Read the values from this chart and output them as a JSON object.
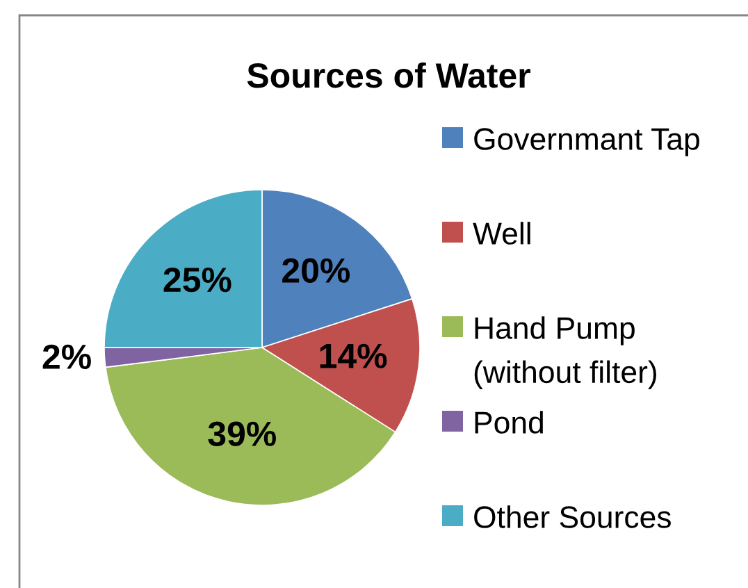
{
  "chart_data": {
    "type": "pie",
    "title": "Sources of Water",
    "categories": [
      "Governmant Tap",
      "Well",
      "Hand Pump (without filter)",
      "Pond",
      "Other Sources"
    ],
    "values": [
      20,
      14,
      39,
      2,
      25
    ],
    "colors": [
      "#4f81bd",
      "#c0504d",
      "#9bbb59",
      "#8064a2",
      "#4bacc6"
    ],
    "value_labels": [
      "20%",
      "14%",
      "39%",
      "2%",
      "25%"
    ],
    "legend": "right"
  }
}
